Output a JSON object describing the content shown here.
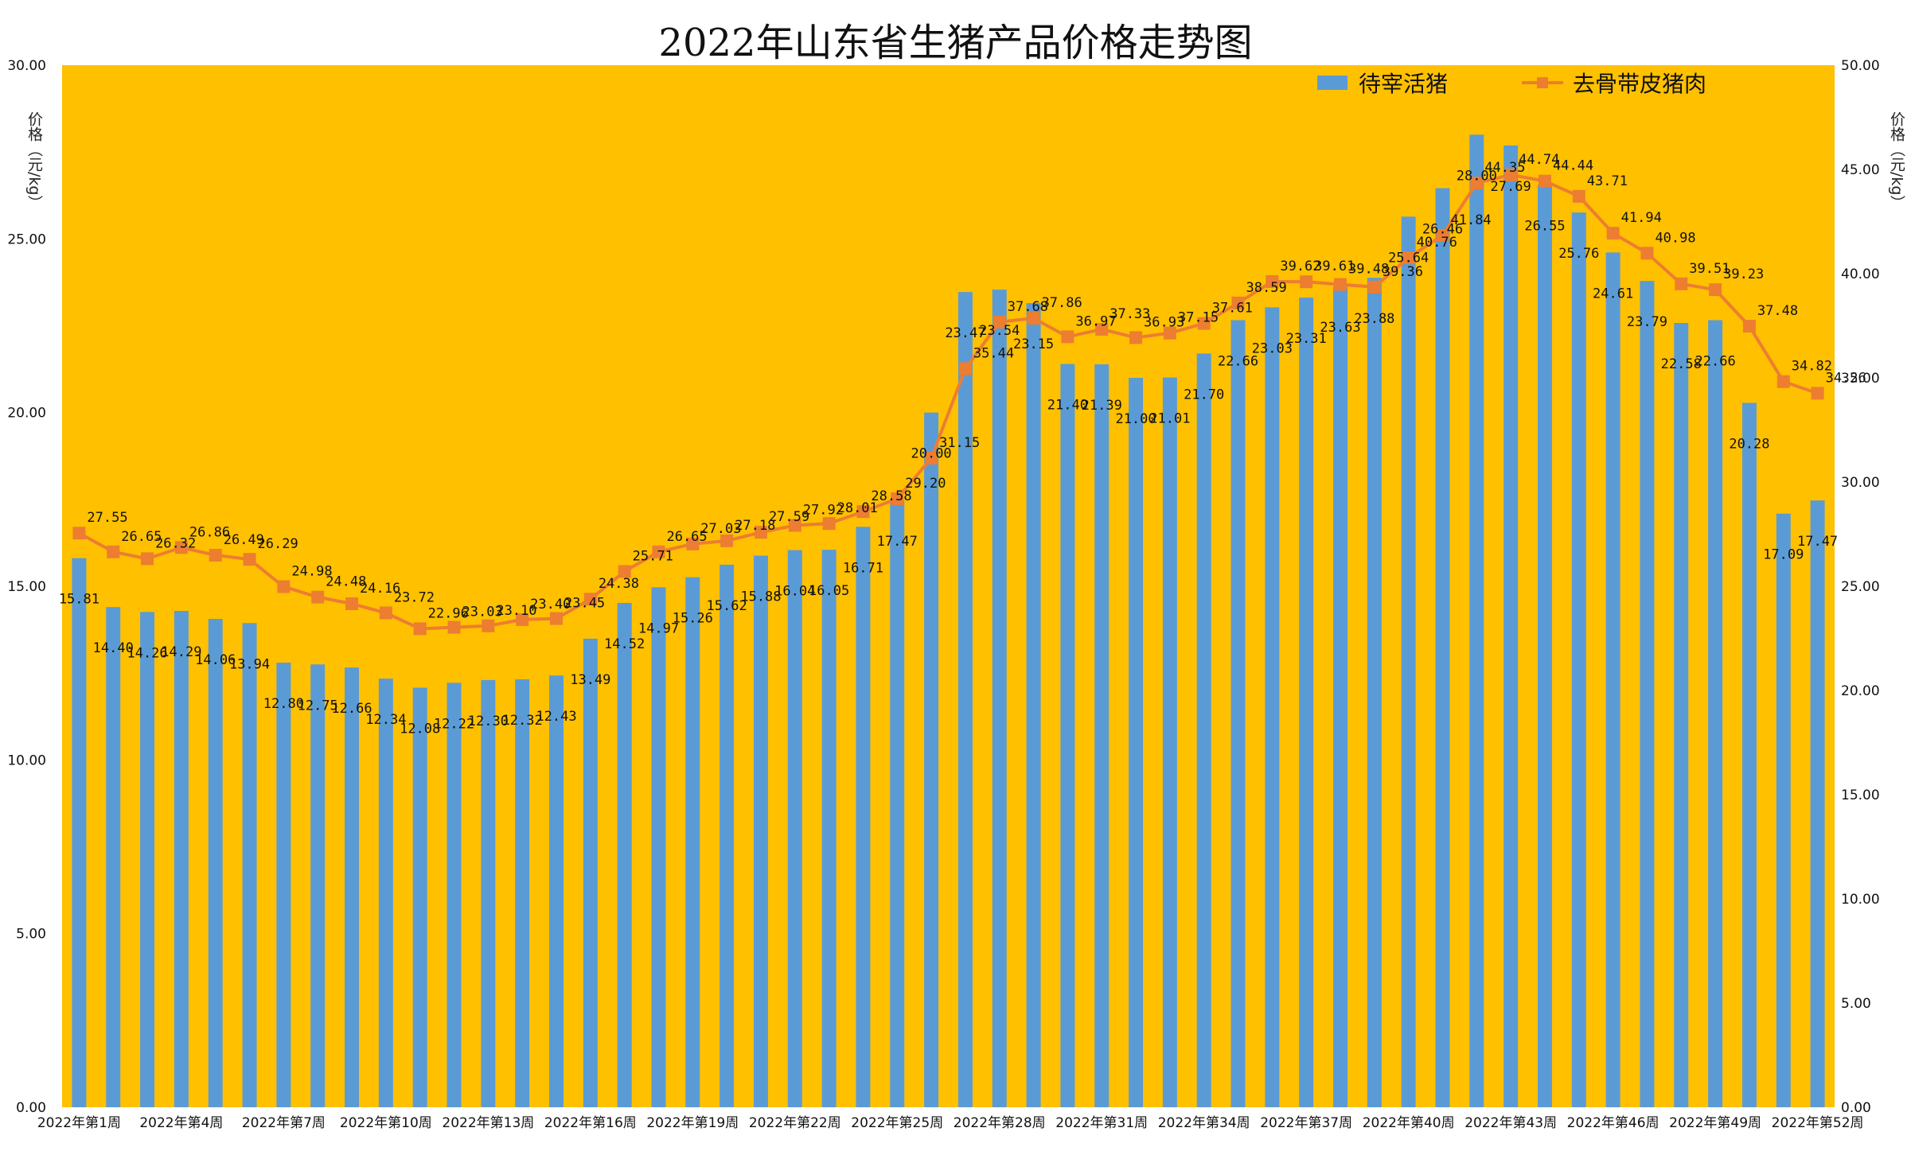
{
  "title": "2022年山东省生猪产品价格走势图",
  "colors": {
    "plot_bg": "#FFC000",
    "bar": "#5B9BD5",
    "line": "#ED7D31",
    "text": "#111111"
  },
  "chart_data": {
    "type": "bar+line",
    "title": "2022年山东省生猪产品价格走势图",
    "y_left_label": "价格（元/kg）",
    "y_right_label": "价格（元/kg）",
    "y_left_range": [
      0,
      30
    ],
    "y_left_ticks": [
      "0.00",
      "5.00",
      "10.00",
      "15.00",
      "20.00",
      "25.00",
      "30.00"
    ],
    "y_right_range": [
      0,
      50
    ],
    "y_right_ticks": [
      "0.00",
      "5.00",
      "10.00",
      "15.00",
      "20.00",
      "25.00",
      "30.00",
      "35.00",
      "40.00",
      "45.00",
      "50.00"
    ],
    "x_tick_labels": [
      "2022年第1周",
      "2022年第4周",
      "2022年第7周",
      "2022年第10周",
      "2022年第13周",
      "2022年第16周",
      "2022年第19周",
      "2022年第22周",
      "2022年第25周",
      "2022年第28周",
      "2022年第31周",
      "2022年第34周",
      "2022年第37周",
      "2022年第40周",
      "2022年第43周",
      "2022年第46周",
      "2022年第49周",
      "2022年第52周"
    ],
    "legend_position": "top-right",
    "grid": false,
    "series": [
      {
        "name": "待宰活猪",
        "type": "bar",
        "axis": "left",
        "values": [
          15.81,
          14.4,
          14.26,
          14.29,
          14.06,
          13.94,
          12.8,
          12.75,
          12.66,
          12.34,
          12.08,
          12.22,
          12.3,
          12.32,
          12.43,
          13.49,
          14.52,
          14.97,
          15.26,
          15.62,
          15.88,
          16.04,
          16.05,
          16.71,
          17.47,
          20.0,
          23.47,
          23.54,
          23.15,
          21.4,
          21.39,
          21.0,
          21.01,
          21.7,
          22.66,
          23.03,
          23.31,
          23.63,
          23.88,
          25.64,
          26.46,
          28.0,
          27.69,
          26.55,
          25.76,
          24.61,
          23.79,
          22.58,
          22.66,
          20.28,
          17.09,
          17.47
        ]
      },
      {
        "name": "去骨带皮猪肉",
        "type": "line",
        "axis": "right",
        "values": [
          27.55,
          26.65,
          26.32,
          26.86,
          26.49,
          26.29,
          24.98,
          24.48,
          24.16,
          23.72,
          22.96,
          23.03,
          23.1,
          23.4,
          23.45,
          24.38,
          25.71,
          26.65,
          27.03,
          27.18,
          27.59,
          27.92,
          28.01,
          28.58,
          29.2,
          31.15,
          35.44,
          37.68,
          37.86,
          36.97,
          37.33,
          36.93,
          37.15,
          37.61,
          38.59,
          39.62,
          39.61,
          39.48,
          39.36,
          40.76,
          41.84,
          44.35,
          44.74,
          44.44,
          43.71,
          41.94,
          40.98,
          39.51,
          39.23,
          37.48,
          34.82,
          34.26
        ]
      }
    ]
  }
}
